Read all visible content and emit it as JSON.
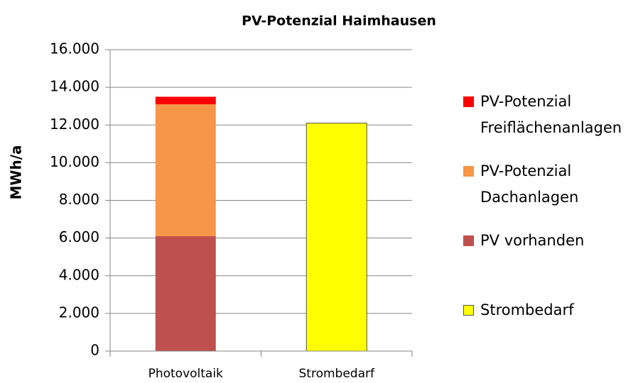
{
  "chart_data": {
    "type": "stacked_bar",
    "title": "PV-Potenzial Haimhausen",
    "y_label": "MWh/a",
    "categories": [
      "Photovoltaik",
      "Strombedarf"
    ],
    "series": [
      {
        "name": "Strombedarf",
        "color": "#ffff00",
        "values": [
          null,
          12100
        ]
      },
      {
        "name": "PV vorhanden",
        "color": "#c0504d",
        "values": [
          6100,
          null
        ]
      },
      {
        "name": "PV-Potenzial Dachanlagen",
        "color": "#f79646",
        "values": [
          7000,
          null
        ]
      },
      {
        "name": "PV-Potenzial Freiflächenanlagen",
        "color": "#ff0000",
        "values": [
          400,
          null
        ]
      }
    ],
    "ylim": [
      0,
      16000
    ],
    "yticks": [
      0,
      {
        "value": 2000,
        "label": "2.000"
      },
      {
        "value": 4000,
        "label": "4.000"
      },
      {
        "value": 6000,
        "label": "6.000"
      },
      {
        "value": 8000,
        "label": "8.000"
      },
      {
        "value": 10000,
        "label": "10.000"
      },
      {
        "value": 12000,
        "label": "12.000"
      },
      {
        "value": 14000,
        "label": "14.000"
      },
      {
        "value": 16000,
        "label": "16.000"
      }
    ],
    "grid": true,
    "legend": "right"
  }
}
